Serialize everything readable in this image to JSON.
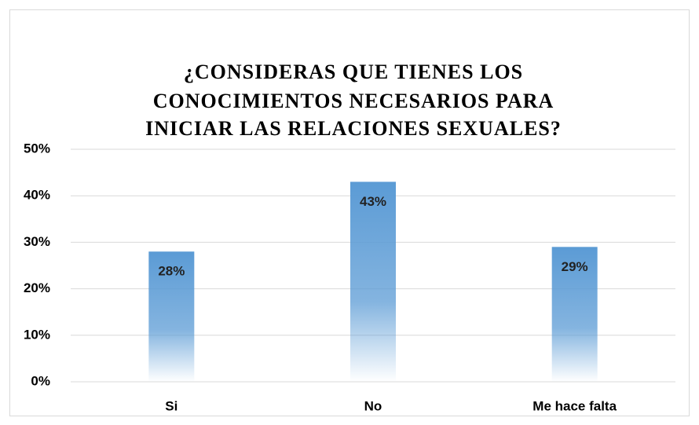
{
  "chart_data": {
    "type": "bar",
    "title": [
      "¿CONSIDERAS QUE TIENES LOS",
      "CONOCIMIENTOS NECESARIOS PARA",
      "INICIAR LAS RELACIONES SEXUALES?"
    ],
    "categories": [
      "Si",
      "No",
      "Me hace falta"
    ],
    "values": [
      28,
      43,
      29
    ],
    "value_labels": [
      "28%",
      "43%",
      "29%"
    ],
    "color": "#5b9bd5",
    "ylim": [
      0,
      50
    ],
    "yticks": [
      {
        "value": 0,
        "label": "0%"
      },
      {
        "value": 10,
        "label": "10%"
      },
      {
        "value": 20,
        "label": "20%"
      },
      {
        "value": 30,
        "label": "30%"
      },
      {
        "value": 40,
        "label": "40%"
      },
      {
        "value": 50,
        "label": "50%"
      }
    ],
    "grid": true
  }
}
